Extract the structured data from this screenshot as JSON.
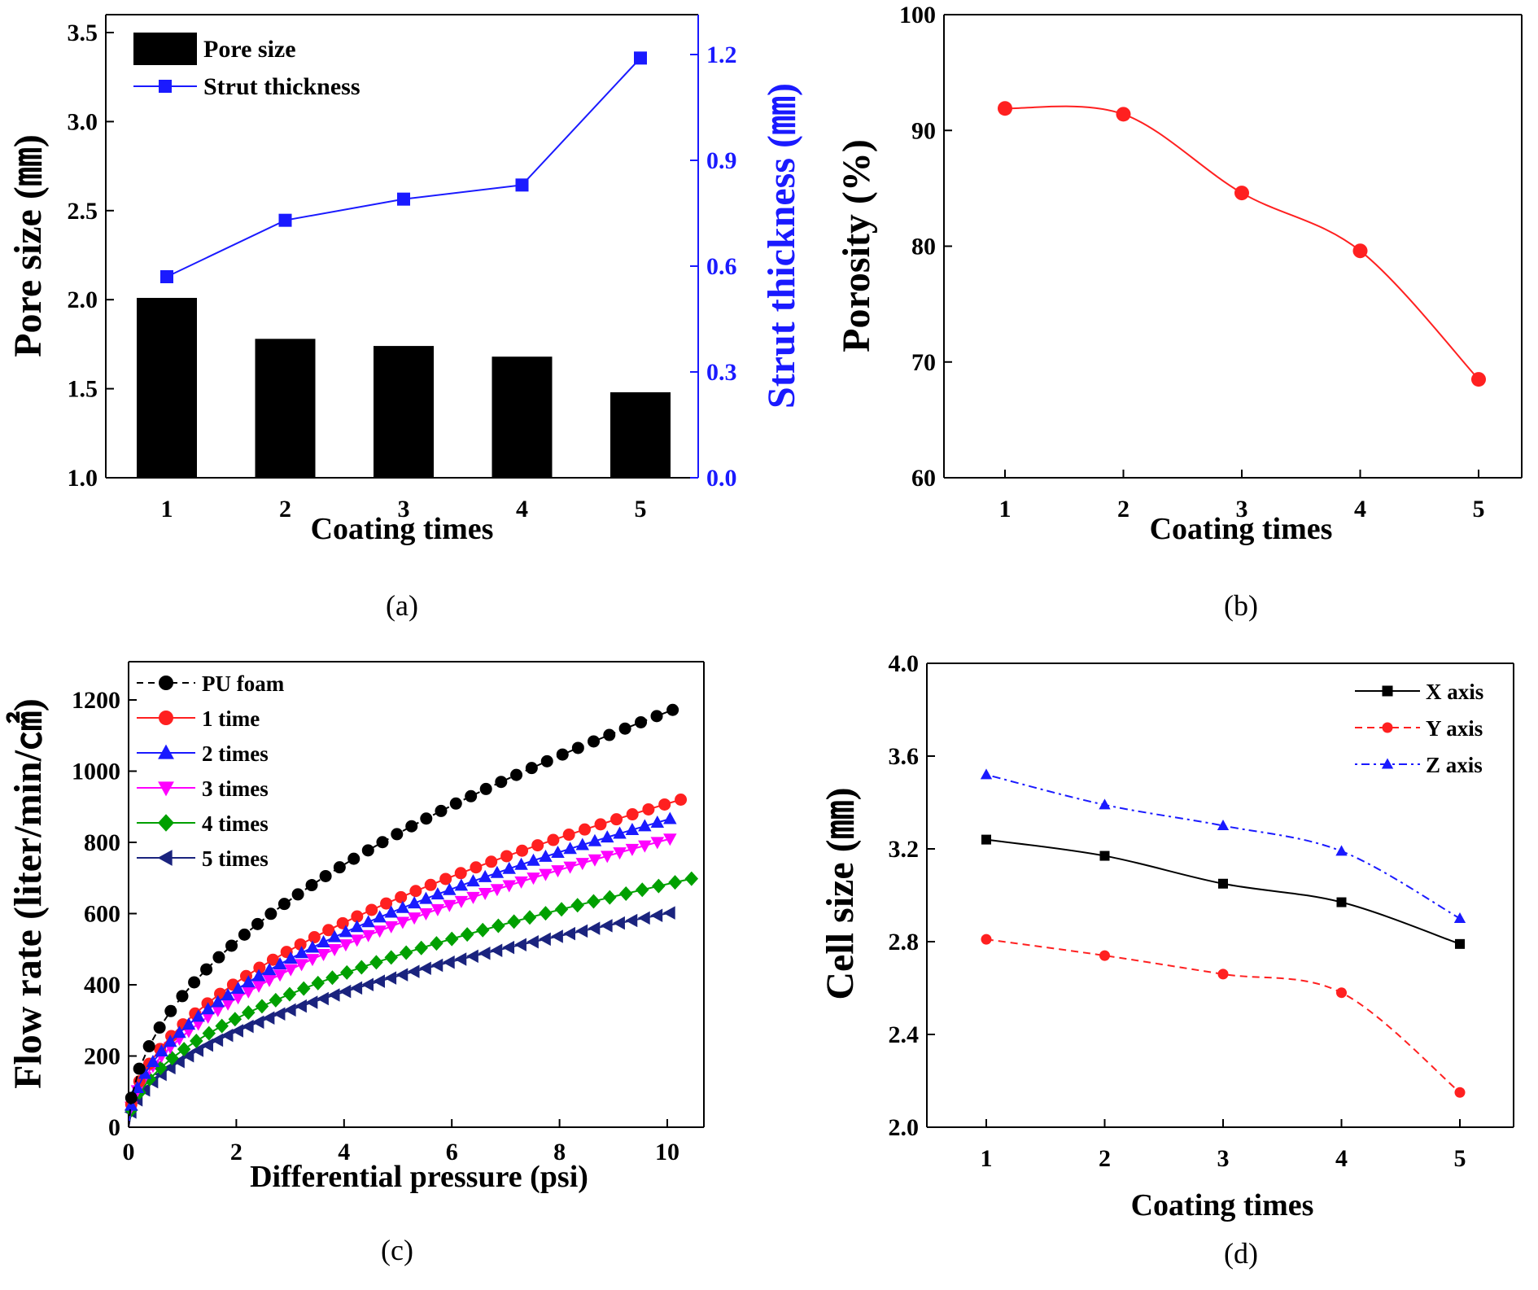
{
  "chart_data": [
    {
      "id": "a",
      "type": "bar+line",
      "panel_label": "(a)",
      "xlabel": "Coating times",
      "ylabel": "Pore size (㎜)",
      "y2label": "Strut thickness (㎜)",
      "categories": [
        1,
        2,
        3,
        4,
        5
      ],
      "ylim": [
        1.0,
        3.5
      ],
      "yticks": [
        "1.0",
        "1.5",
        "2.0",
        "2.5",
        "3.0",
        "3.5"
      ],
      "y2lim": [
        0.0,
        1.3
      ],
      "y2ticks": [
        "0.0",
        "0.3",
        "0.6",
        "0.9",
        "1.2"
      ],
      "series": [
        {
          "name": "Pore size",
          "kind": "bar",
          "axis": "left",
          "color": "#000000",
          "values": [
            2.01,
            1.78,
            1.74,
            1.68,
            1.48
          ]
        },
        {
          "name": "Strut thickness",
          "kind": "line",
          "axis": "right",
          "color": "#1a1aff",
          "marker": "square",
          "values": [
            0.57,
            0.73,
            0.79,
            0.83,
            1.19
          ]
        }
      ],
      "legend": "top-left",
      "axis_colors": {
        "right": "#1a1aff"
      }
    },
    {
      "id": "b",
      "type": "line",
      "panel_label": "(b)",
      "xlabel": "Coating times",
      "ylabel": "Porosity (%)",
      "categories": [
        1,
        2,
        3,
        4,
        5
      ],
      "ylim": [
        60,
        100
      ],
      "yticks": [
        "60",
        "70",
        "80",
        "90",
        "100"
      ],
      "series": [
        {
          "name": "Porosity",
          "color": "#ff2020",
          "marker": "circle",
          "values": [
            91.9,
            91.4,
            84.6,
            79.6,
            68.5
          ]
        }
      ]
    },
    {
      "id": "c",
      "type": "scatter-line",
      "panel_label": "(c)",
      "xlabel": "Differential pressure (psi)",
      "ylabel": "Flow rate (liter/min/㎠)",
      "xlim": [
        0,
        10.7
      ],
      "xticks": [
        "0",
        "2",
        "4",
        "6",
        "8",
        "10"
      ],
      "ylim": [
        0,
        1300
      ],
      "yticks": [
        "0",
        "200",
        "400",
        "600",
        "800",
        "1000",
        "1200"
      ],
      "series": [
        {
          "name": "PU foam",
          "color": "#000000",
          "marker": "circle",
          "dash": true,
          "xmax": 10.1,
          "ymax": 1172,
          "exp": 0.5,
          "n": 40
        },
        {
          "name": "1 time",
          "color": "#ff2020",
          "marker": "circle",
          "dash": false,
          "xmax": 10.25,
          "ymax": 920,
          "exp": 0.5,
          "n": 40
        },
        {
          "name": "2 times",
          "color": "#1a1aff",
          "marker": "triangle-up",
          "dash": false,
          "xmax": 10.05,
          "ymax": 866,
          "exp": 0.5,
          "n": 50
        },
        {
          "name": "3 times",
          "color": "#ff00ff",
          "marker": "triangle-down",
          "dash": false,
          "xmax": 10.05,
          "ymax": 810,
          "exp": 0.5,
          "n": 50
        },
        {
          "name": "4 times",
          "color": "#00a000",
          "marker": "diamond",
          "dash": false,
          "xmax": 10.45,
          "ymax": 698,
          "exp": 0.5,
          "n": 40
        },
        {
          "name": "5 times",
          "color": "#1a237e",
          "marker": "triangle-left",
          "dash": false,
          "xmax": 10.05,
          "ymax": 602,
          "exp": 0.5,
          "n": 50
        }
      ],
      "legend": "top-left"
    },
    {
      "id": "d",
      "type": "line",
      "panel_label": "(d)",
      "xlabel": "Coating times",
      "ylabel": "Cell size (㎜)",
      "categories": [
        1,
        2,
        3,
        4,
        5
      ],
      "ylim": [
        2.0,
        4.0
      ],
      "yticks": [
        "2.0",
        "2.4",
        "2.8",
        "3.2",
        "3.6",
        "4.0"
      ],
      "series": [
        {
          "name": "X axis",
          "color": "#000000",
          "marker": "square",
          "dash": "solid",
          "values": [
            3.24,
            3.17,
            3.05,
            2.97,
            2.79
          ]
        },
        {
          "name": "Y axis",
          "color": "#ff2020",
          "marker": "circle",
          "dash": "dashed",
          "values": [
            2.81,
            2.74,
            2.66,
            2.58,
            2.15
          ]
        },
        {
          "name": "Z axis",
          "color": "#1a1aff",
          "marker": "triangle-up",
          "dash": "dotted",
          "values": [
            3.52,
            3.39,
            3.3,
            3.19,
            2.9
          ]
        }
      ],
      "legend": "top-right"
    }
  ]
}
